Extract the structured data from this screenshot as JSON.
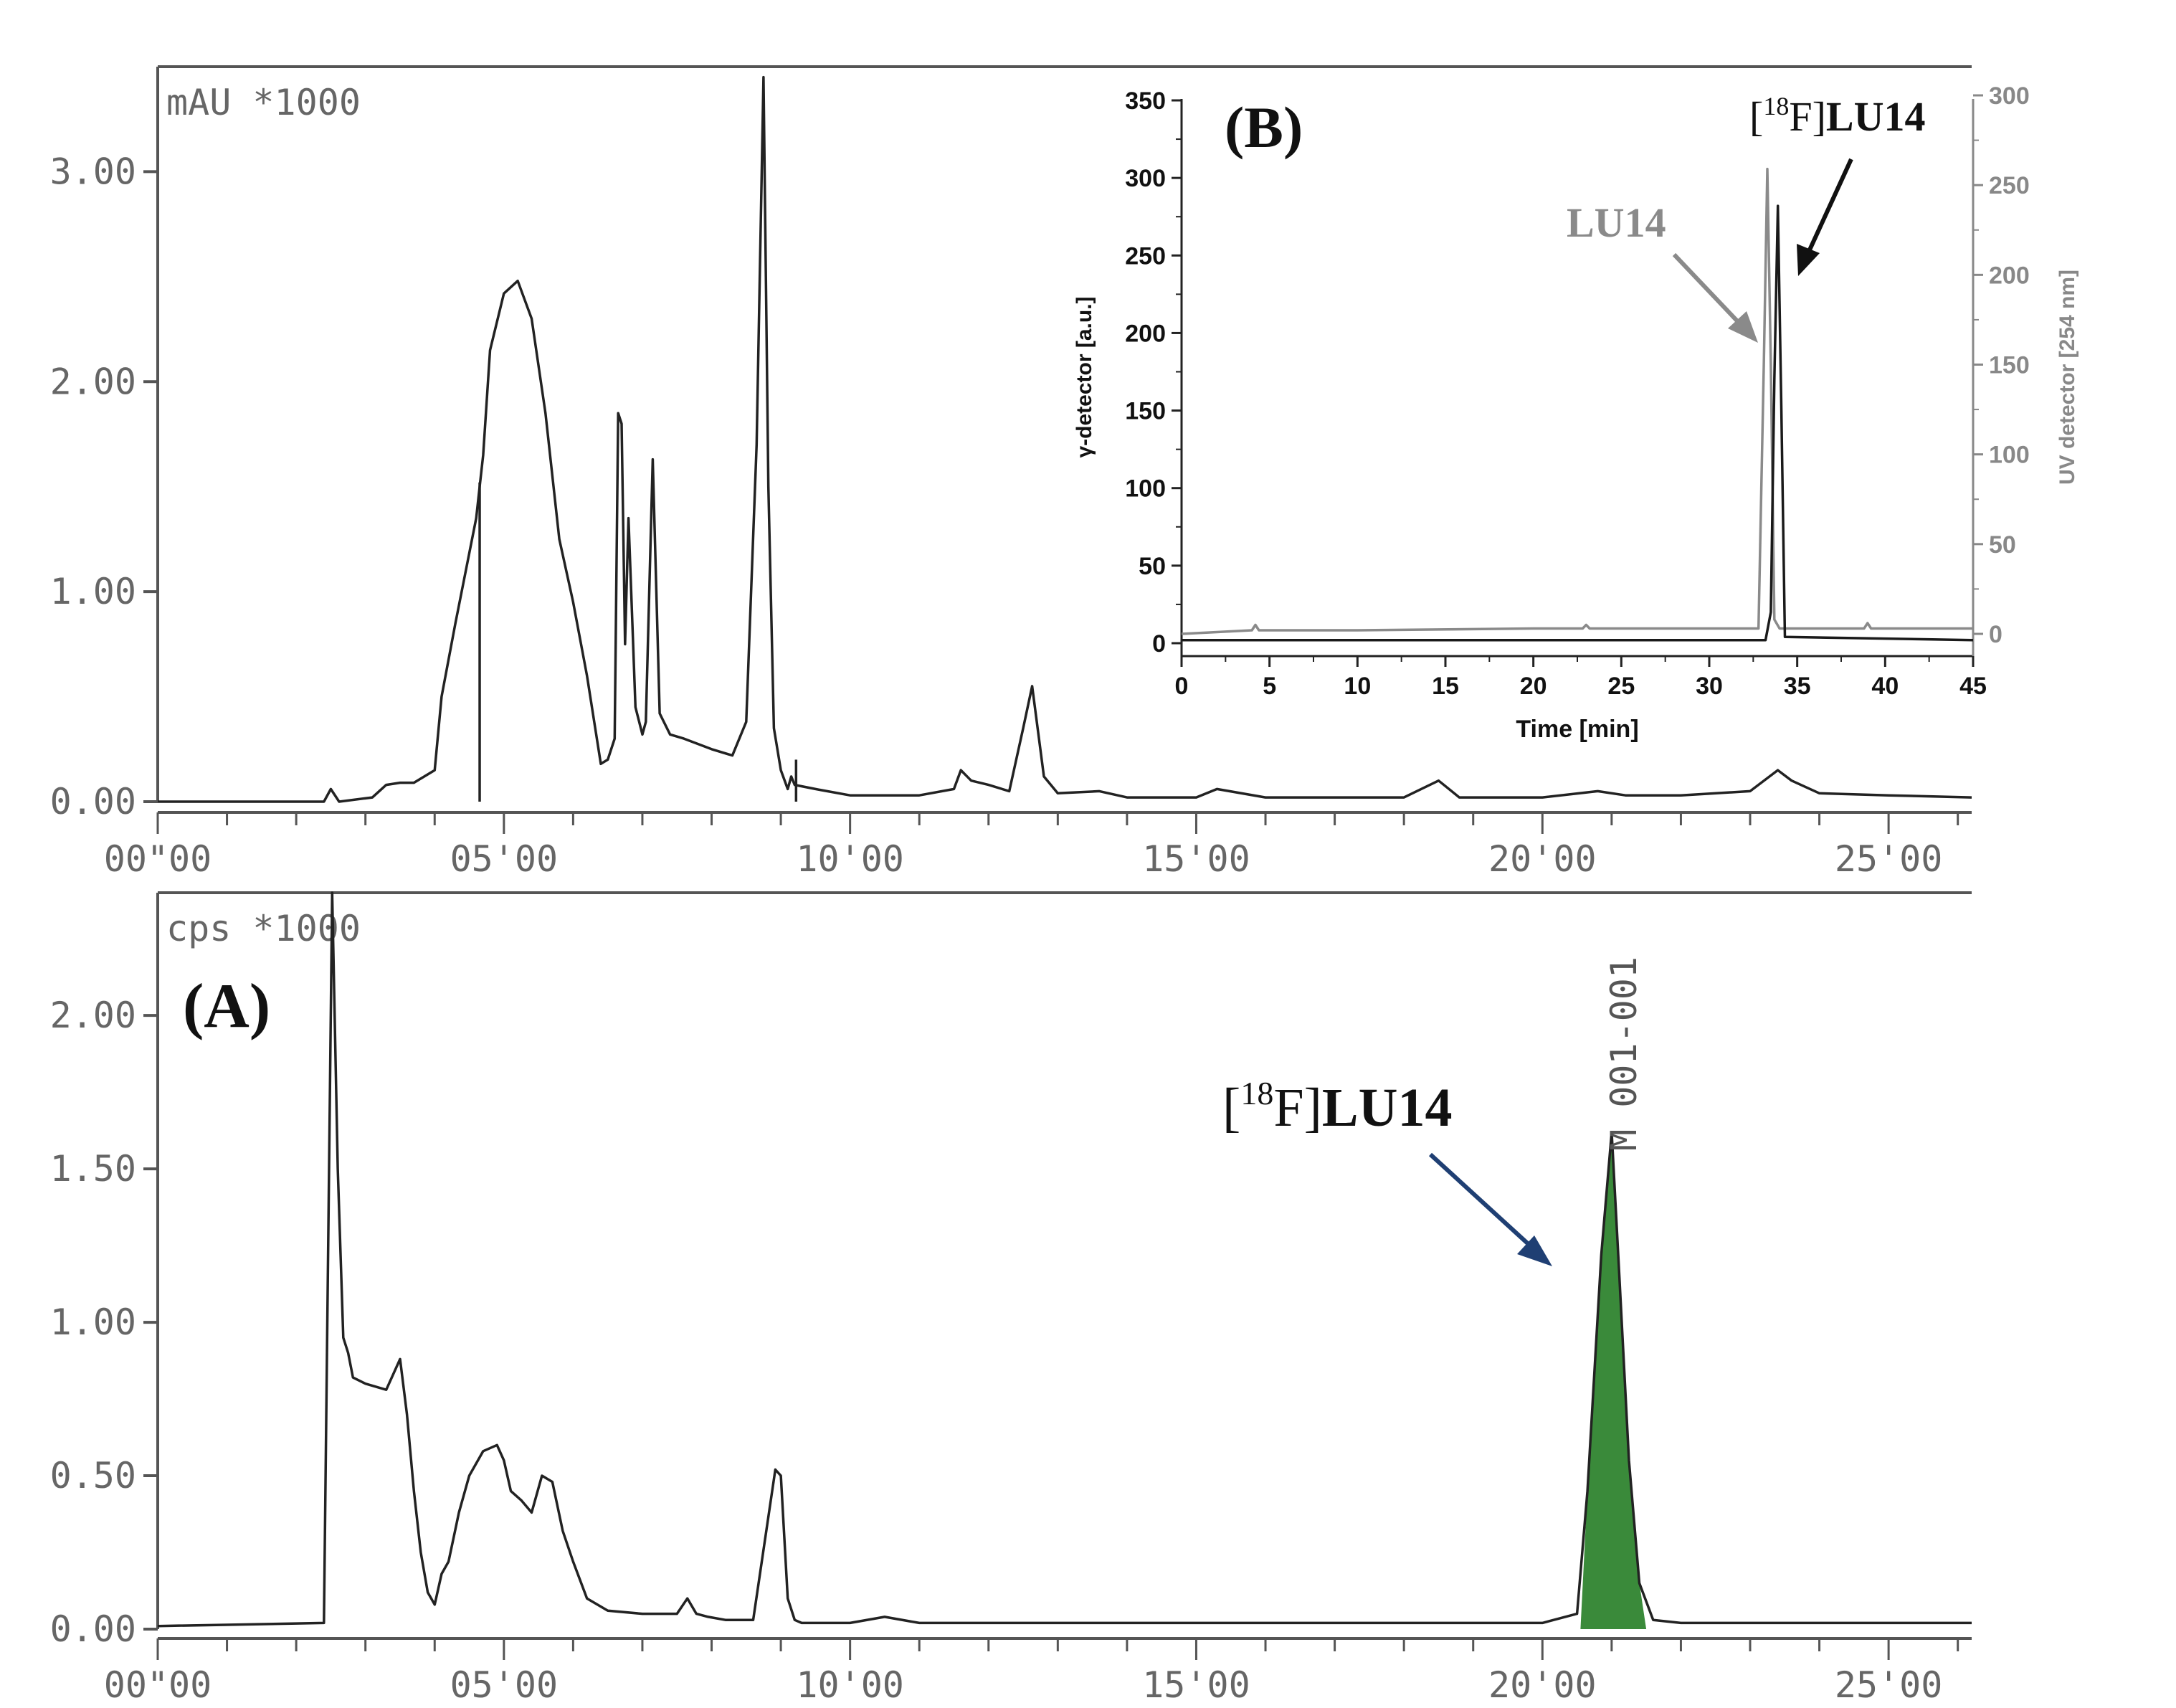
{
  "panel_a_label": "(A)",
  "panel_b_label": "(B)",
  "colors": {
    "trace": "#222222",
    "frame": "#555555",
    "mono_text": "#666666",
    "uv_gray": "#8a8a8a",
    "peak_fill": "#3a8a3a",
    "arrow_blue": "#1f3f73"
  },
  "chart_data": [
    {
      "id": "uv_chromatogram_top",
      "type": "line",
      "unit_label": "mAU *1000",
      "ylim": [
        0,
        3.5
      ],
      "ytick_labels": [
        "0.00",
        "1.00",
        "2.00",
        "3.00"
      ],
      "ytick_values": [
        0,
        1,
        2,
        3
      ],
      "xlim": [
        0,
        26.2
      ],
      "xtick_labels": [
        "00\"00",
        "05'00",
        "10'00",
        "15'00",
        "20'00",
        "25'00"
      ],
      "xtick_values": [
        0,
        5,
        10,
        15,
        20,
        25
      ],
      "series": [
        {
          "x": [
            0,
            2.4,
            2.5,
            2.62,
            3.1,
            3.3,
            3.5,
            3.7,
            4.0,
            4.1,
            4.3,
            4.6,
            4.65,
            4.7,
            4.8,
            5.0,
            5.2,
            5.4,
            5.6,
            5.8,
            6.0,
            6.2,
            6.4,
            6.5,
            6.6,
            6.65,
            6.7,
            6.75,
            6.8,
            6.9,
            7.0,
            7.05,
            7.15,
            7.25,
            7.4,
            7.6,
            8.0,
            8.3,
            8.5,
            8.65,
            8.75,
            8.82,
            8.9,
            9.0,
            9.1,
            9.15,
            9.2,
            9.5,
            10,
            11,
            11.5,
            11.6,
            11.75,
            12,
            12.3,
            12.5,
            12.63,
            12.8,
            13,
            13.6,
            14,
            15.0,
            15.3,
            16,
            17,
            18,
            18.5,
            18.8,
            19,
            20,
            20.8,
            21.2,
            22,
            23,
            23.4,
            23.6,
            24,
            25,
            26.2
          ],
          "y": [
            0.0,
            0.0,
            0.06,
            0.0,
            0.02,
            0.08,
            0.09,
            0.09,
            0.15,
            0.5,
            0.85,
            1.35,
            1.5,
            1.65,
            2.15,
            2.42,
            2.48,
            2.3,
            1.85,
            1.25,
            0.95,
            0.6,
            0.18,
            0.2,
            0.3,
            1.85,
            1.8,
            0.75,
            1.35,
            0.45,
            0.32,
            0.38,
            1.63,
            0.42,
            0.32,
            0.3,
            0.25,
            0.22,
            0.38,
            1.7,
            3.45,
            1.5,
            0.35,
            0.15,
            0.06,
            0.12,
            0.08,
            0.06,
            0.03,
            0.03,
            0.06,
            0.15,
            0.1,
            0.08,
            0.05,
            0.35,
            0.55,
            0.12,
            0.04,
            0.05,
            0.02,
            0.02,
            0.06,
            0.02,
            0.02,
            0.02,
            0.1,
            0.02,
            0.02,
            0.02,
            0.05,
            0.03,
            0.03,
            0.05,
            0.15,
            0.1,
            0.04,
            0.03,
            0.02
          ]
        }
      ],
      "spikes": [
        {
          "x": 4.65,
          "y_from": 0.0,
          "y_to": 1.52
        },
        {
          "x": 9.22,
          "y_from": 0.0,
          "y_to": 0.2
        }
      ]
    },
    {
      "id": "radio_chromatogram_a",
      "type": "line",
      "unit_label": "cps *1000",
      "ylim": [
        0,
        2.4
      ],
      "ytick_labels": [
        "0.00",
        "0.50",
        "1.00",
        "1.50",
        "2.00"
      ],
      "ytick_values": [
        0,
        0.5,
        1.0,
        1.5,
        2.0
      ],
      "xlim": [
        0,
        26.2
      ],
      "xtick_labels": [
        "00\"00",
        "05'00",
        "10'00",
        "15'00",
        "20'00",
        "25'00"
      ],
      "xtick_values": [
        0,
        5,
        10,
        15,
        20,
        25
      ],
      "peak_marker_label": "M 001-001",
      "annotation": {
        "pre": "[",
        "sup": "18",
        "mid": "F]",
        "bold": "LU14"
      },
      "series": [
        {
          "x": [
            0,
            2.4,
            2.52,
            2.6,
            2.68,
            2.75,
            2.82,
            3.0,
            3.3,
            3.5,
            3.6,
            3.7,
            3.8,
            3.9,
            4.0,
            4.1,
            4.2,
            4.35,
            4.5,
            4.7,
            4.9,
            5.0,
            5.1,
            5.25,
            5.4,
            5.55,
            5.7,
            5.85,
            6.0,
            6.2,
            6.5,
            7.0,
            7.5,
            7.65,
            7.78,
            7.95,
            8.2,
            8.6,
            8.92,
            9.0,
            9.1,
            9.2,
            9.3,
            9.5,
            10,
            10.5,
            11,
            12,
            13,
            14,
            15,
            16,
            17,
            18,
            19,
            20,
            20.5,
            20.65,
            20.85,
            21.0,
            21.1,
            21.25,
            21.4,
            21.6,
            22,
            23,
            24,
            25,
            26.2
          ],
          "y": [
            0.01,
            0.02,
            2.4,
            1.5,
            0.95,
            0.9,
            0.82,
            0.8,
            0.78,
            0.88,
            0.7,
            0.45,
            0.25,
            0.12,
            0.08,
            0.18,
            0.22,
            0.38,
            0.5,
            0.58,
            0.6,
            0.55,
            0.45,
            0.42,
            0.38,
            0.5,
            0.48,
            0.32,
            0.22,
            0.1,
            0.06,
            0.05,
            0.05,
            0.1,
            0.05,
            0.04,
            0.03,
            0.03,
            0.52,
            0.5,
            0.1,
            0.03,
            0.02,
            0.02,
            0.02,
            0.04,
            0.02,
            0.02,
            0.02,
            0.02,
            0.02,
            0.02,
            0.02,
            0.02,
            0.02,
            0.02,
            0.05,
            0.45,
            1.22,
            1.62,
            1.2,
            0.55,
            0.15,
            0.03,
            0.02,
            0.02,
            0.02,
            0.02,
            0.02
          ]
        }
      ],
      "highlight_range": [
        20.55,
        21.5
      ]
    },
    {
      "id": "inset_b",
      "type": "line",
      "xlabel": "Time [min]",
      "ylabel_left": "γ-detector [a.u.]",
      "ylabel_right": "UV detector [254 nm]",
      "xlim": [
        0,
        45
      ],
      "xticks": [
        0,
        5,
        10,
        15,
        20,
        25,
        30,
        35,
        40,
        45
      ],
      "ylim_left": [
        0,
        350
      ],
      "yticks_left": [
        0,
        50,
        100,
        150,
        200,
        250,
        300,
        350
      ],
      "ylim_right": [
        0,
        300
      ],
      "yticks_right": [
        0,
        50,
        100,
        150,
        200,
        250,
        300
      ],
      "annotation_uv": "LU14",
      "annotation_gamma": {
        "pre": "[",
        "sup": "18",
        "mid": "F]",
        "bold": "LU14"
      },
      "series": [
        {
          "id": "uv",
          "axis": "right",
          "x": [
            0,
            4.0,
            4.2,
            4.4,
            10,
            20,
            22.8,
            23.0,
            23.2,
            27,
            30,
            32.8,
            33.1,
            33.3,
            33.5,
            33.7,
            34.0,
            35,
            38.8,
            39.0,
            39.2,
            45
          ],
          "y": [
            0,
            2,
            5,
            2,
            2,
            3,
            3,
            5,
            3,
            3,
            3,
            3,
            150,
            259,
            150,
            8,
            3,
            3,
            3,
            6,
            3,
            3
          ]
        },
        {
          "id": "gamma",
          "axis": "left",
          "x": [
            0,
            33.2,
            33.5,
            33.7,
            33.9,
            34.1,
            34.3,
            45
          ],
          "y": [
            2,
            2,
            20,
            170,
            282,
            150,
            4,
            2
          ]
        }
      ]
    }
  ]
}
